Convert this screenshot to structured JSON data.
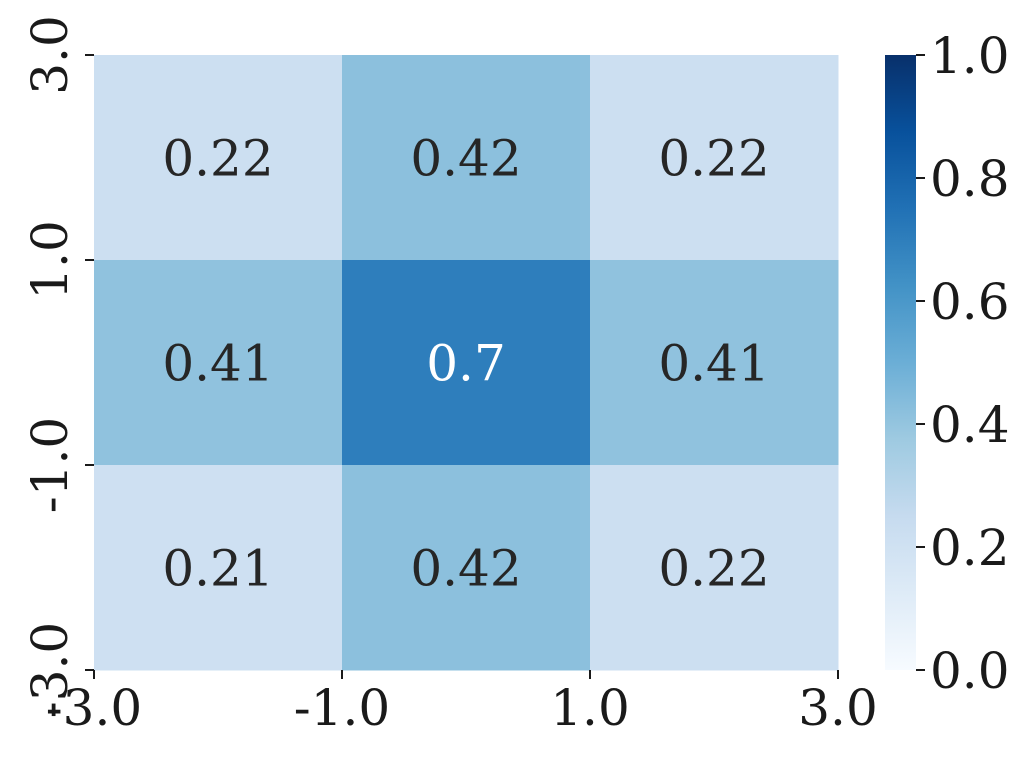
{
  "chart_data": {
    "type": "heatmap",
    "x_ticks": [
      "-3.0",
      "-1.0",
      "1.0",
      "3.0"
    ],
    "y_ticks": [
      "3.0",
      "1.0",
      "-1.0",
      "-3.0"
    ],
    "cells": [
      [
        0.22,
        0.42,
        0.22
      ],
      [
        0.41,
        0.7,
        0.41
      ],
      [
        0.21,
        0.42,
        0.22
      ]
    ],
    "cell_labels": [
      [
        "0.22",
        "0.42",
        "0.22"
      ],
      [
        "0.41",
        "0.7",
        "0.41"
      ],
      [
        "0.21",
        "0.42",
        "0.22"
      ]
    ],
    "colorbar": {
      "range": [
        0.0,
        1.0
      ],
      "ticks": [
        "0.0",
        "0.2",
        "0.4",
        "0.6",
        "0.8",
        "1.0"
      ]
    },
    "colormap": "Blues",
    "title": "",
    "xlabel": "",
    "ylabel": ""
  }
}
